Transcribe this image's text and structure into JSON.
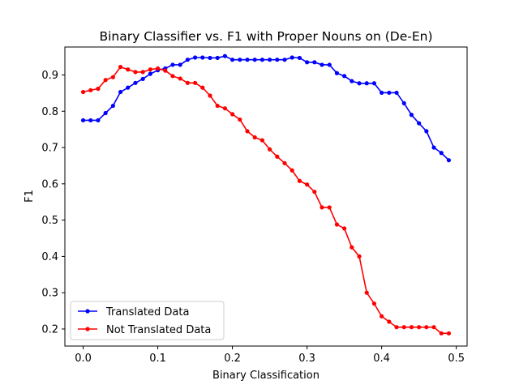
{
  "chart_data": {
    "type": "line",
    "title": "Binary Classifier vs. F1 with Proper Nouns on (De-En)",
    "xlabel": "Binary Classification",
    "ylabel": "F1",
    "xlim": [
      -0.0245,
      0.5145
    ],
    "ylim": [
      0.153,
      0.977
    ],
    "xticks": [
      0.0,
      0.1,
      0.2,
      0.3,
      0.4,
      0.5
    ],
    "xtick_labels": [
      "0.0",
      "0.1",
      "0.2",
      "0.3",
      "0.4",
      "0.5"
    ],
    "yticks": [
      0.2,
      0.3,
      0.4,
      0.5,
      0.6,
      0.7,
      0.8,
      0.9
    ],
    "ytick_labels": [
      "0.2",
      "0.3",
      "0.4",
      "0.5",
      "0.6",
      "0.7",
      "0.8",
      "0.9"
    ],
    "grid": false,
    "legend_position": "lower-left",
    "x": [
      0.0,
      0.01,
      0.02,
      0.03,
      0.04,
      0.05,
      0.06,
      0.07,
      0.08,
      0.09,
      0.1,
      0.11,
      0.12,
      0.13,
      0.14,
      0.15,
      0.16,
      0.17,
      0.18,
      0.19,
      0.2,
      0.21,
      0.22,
      0.23,
      0.24,
      0.25,
      0.26,
      0.27,
      0.28,
      0.29,
      0.3,
      0.31,
      0.32,
      0.33,
      0.34,
      0.35,
      0.36,
      0.37,
      0.38,
      0.39,
      0.4,
      0.41,
      0.42,
      0.43,
      0.44,
      0.45,
      0.46,
      0.47,
      0.48,
      0.49
    ],
    "series": [
      {
        "name": "Translated Data",
        "color": "#0000ff",
        "values": [
          0.775,
          0.775,
          0.775,
          0.795,
          0.815,
          0.853,
          0.865,
          0.878,
          0.889,
          0.903,
          0.913,
          0.918,
          0.928,
          0.928,
          0.942,
          0.948,
          0.948,
          0.947,
          0.947,
          0.952,
          0.942,
          0.942,
          0.942,
          0.942,
          0.942,
          0.942,
          0.942,
          0.942,
          0.948,
          0.947,
          0.935,
          0.935,
          0.928,
          0.928,
          0.905,
          0.897,
          0.883,
          0.877,
          0.877,
          0.877,
          0.851,
          0.851,
          0.851,
          0.822,
          0.79,
          0.767,
          0.745,
          0.7,
          0.685,
          0.665
        ]
      },
      {
        "name": "Not Translated Data",
        "color": "#ff0000",
        "values": [
          0.853,
          0.858,
          0.862,
          0.886,
          0.894,
          0.922,
          0.915,
          0.908,
          0.908,
          0.915,
          0.918,
          0.912,
          0.897,
          0.89,
          0.878,
          0.878,
          0.865,
          0.843,
          0.815,
          0.808,
          0.792,
          0.777,
          0.745,
          0.728,
          0.72,
          0.695,
          0.675,
          0.657,
          0.637,
          0.608,
          0.598,
          0.578,
          0.535,
          0.535,
          0.488,
          0.477,
          0.425,
          0.4,
          0.3,
          0.27,
          0.235,
          0.22,
          0.205,
          0.205,
          0.205,
          0.205,
          0.205,
          0.205,
          0.188,
          0.188
        ]
      }
    ]
  }
}
